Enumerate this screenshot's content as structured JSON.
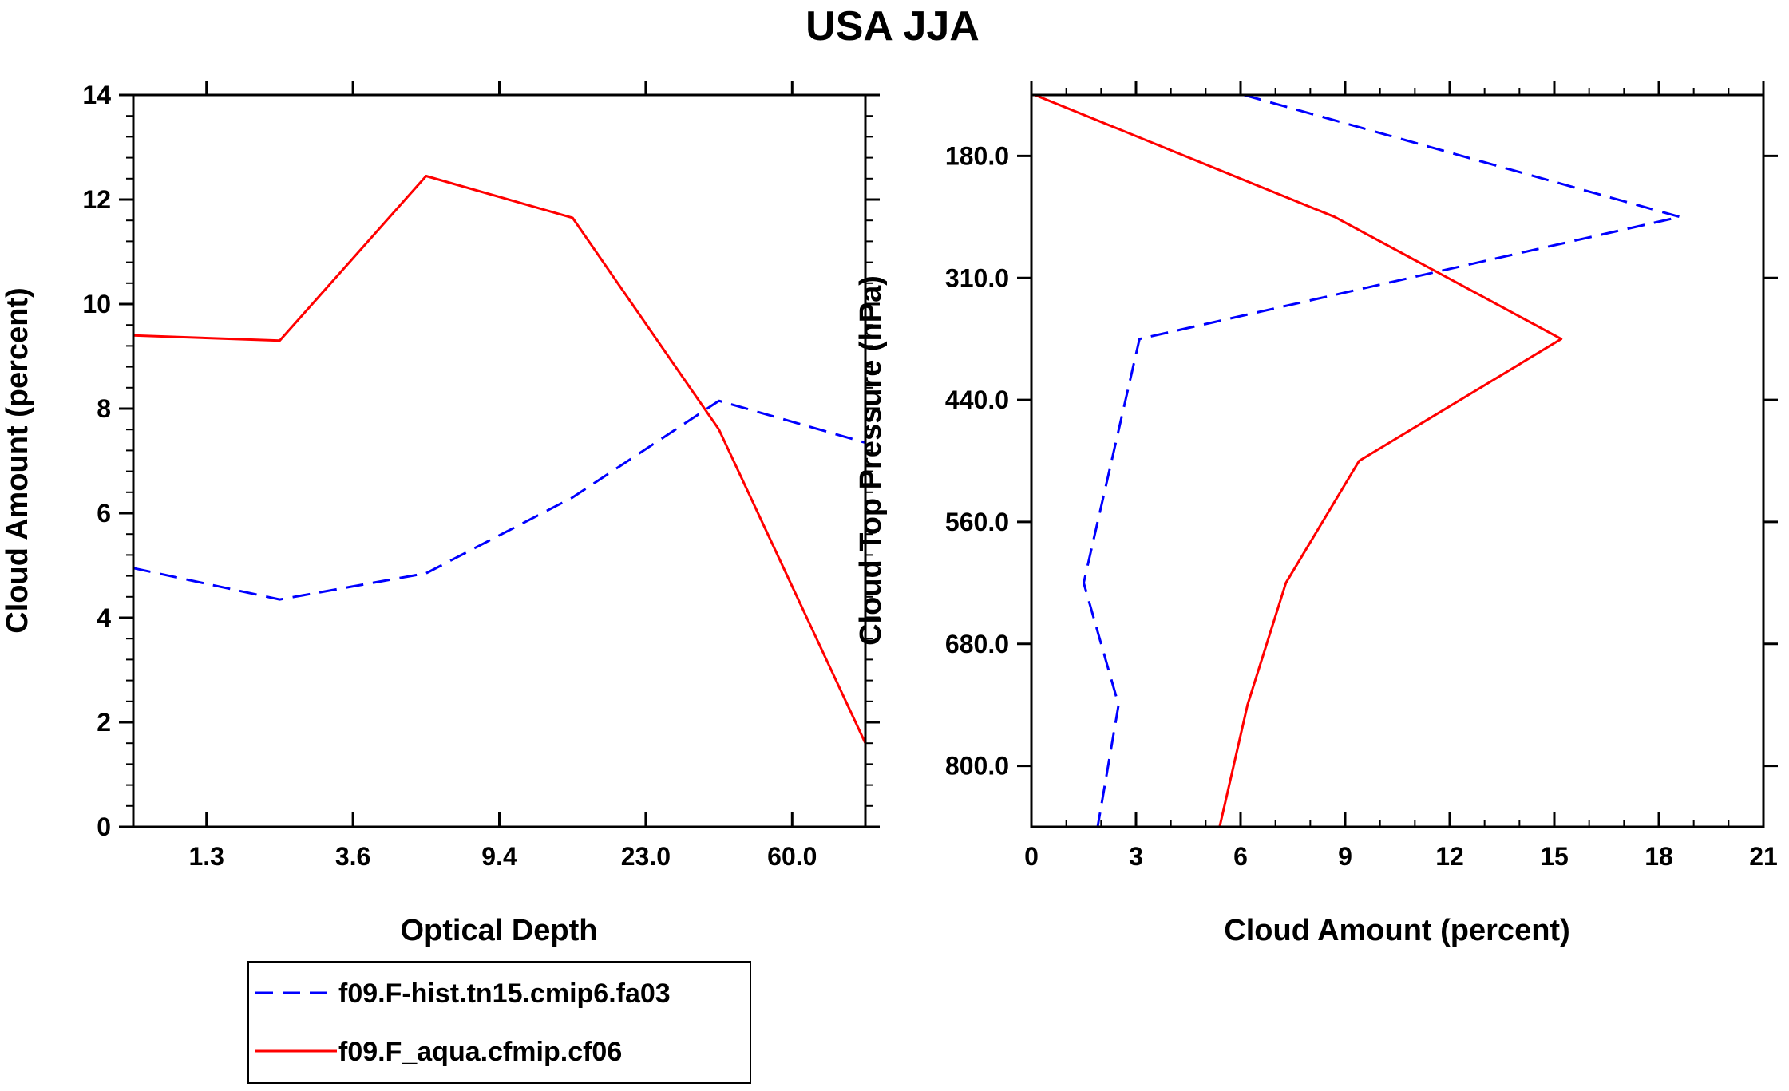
{
  "title": "USA JJA",
  "colors": {
    "series1": "#0000ff",
    "series2": "#ff0000",
    "axis": "#000000"
  },
  "chart_data": [
    {
      "type": "line",
      "name": "left-panel",
      "xlabel": "Optical Depth",
      "ylabel": "Cloud Amount (percent)",
      "xlim": [
        0,
        5
      ],
      "ylim": [
        0,
        14
      ],
      "xticks": [
        {
          "value": 0.5,
          "label": "1.3"
        },
        {
          "value": 1.5,
          "label": "3.6"
        },
        {
          "value": 2.5,
          "label": "9.4"
        },
        {
          "value": 3.5,
          "label": "23.0"
        },
        {
          "value": 4.5,
          "label": "60.0"
        }
      ],
      "yticks": [
        {
          "value": 0,
          "label": "0"
        },
        {
          "value": 2,
          "label": "2"
        },
        {
          "value": 4,
          "label": "4"
        },
        {
          "value": 6,
          "label": "6"
        },
        {
          "value": 8,
          "label": "8"
        },
        {
          "value": 10,
          "label": "10"
        },
        {
          "value": 12,
          "label": "12"
        },
        {
          "value": 14,
          "label": "14"
        }
      ],
      "series": [
        {
          "name": "f09.F-hist.tn15.cmip6.fa03",
          "color": "#0000ff",
          "dash": true,
          "points": [
            [
              0,
              4.95
            ],
            [
              1,
              4.35
            ],
            [
              2,
              4.85
            ],
            [
              3,
              6.3
            ],
            [
              4,
              8.15
            ],
            [
              5,
              7.35
            ]
          ]
        },
        {
          "name": "f09.F_aqua.cfmip.cf06",
          "color": "#ff0000",
          "dash": false,
          "points": [
            [
              0,
              9.4
            ],
            [
              1,
              9.3
            ],
            [
              2,
              12.45
            ],
            [
              3,
              11.65
            ],
            [
              4,
              7.6
            ],
            [
              5,
              1.6
            ]
          ]
        }
      ]
    },
    {
      "type": "line",
      "name": "right-panel",
      "xlabel": "Cloud Amount (percent)",
      "ylabel": "Cloud Top Pressure (hPa)",
      "xlim": [
        0,
        21
      ],
      "ylim": [
        0,
        6
      ],
      "xticks": [
        {
          "value": 0,
          "label": "0"
        },
        {
          "value": 3,
          "label": "3"
        },
        {
          "value": 6,
          "label": "6"
        },
        {
          "value": 9,
          "label": "9"
        },
        {
          "value": 12,
          "label": "12"
        },
        {
          "value": 15,
          "label": "15"
        },
        {
          "value": 18,
          "label": "18"
        },
        {
          "value": 21,
          "label": "21"
        }
      ],
      "yticks": [
        {
          "value": 0.5,
          "label": "180.0"
        },
        {
          "value": 1.5,
          "label": "310.0"
        },
        {
          "value": 2.5,
          "label": "440.0"
        },
        {
          "value": 3.5,
          "label": "560.0"
        },
        {
          "value": 4.5,
          "label": "680.0"
        },
        {
          "value": 5.5,
          "label": "800.0"
        }
      ],
      "series": [
        {
          "name": "f09.F-hist.tn15.cmip6.fa03",
          "color": "#0000ff",
          "dash": true,
          "points": [
            [
              6.1,
              0
            ],
            [
              18.6,
              1
            ],
            [
              3.1,
              2
            ],
            [
              1.5,
              4
            ],
            [
              2.5,
              5
            ],
            [
              1.9,
              6
            ]
          ]
        },
        {
          "name": "f09.F_aqua.cfmip.cf06",
          "color": "#ff0000",
          "dash": false,
          "points": [
            [
              0.1,
              0
            ],
            [
              8.7,
              1
            ],
            [
              15.2,
              2
            ],
            [
              9.4,
              3
            ],
            [
              7.3,
              4
            ],
            [
              6.2,
              5
            ],
            [
              5.4,
              6
            ]
          ]
        }
      ]
    }
  ],
  "legend": [
    {
      "label": "f09.F-hist.tn15.cmip6.fa03",
      "color": "#0000ff",
      "dash": true
    },
    {
      "label": "f09.F_aqua.cfmip.cf06",
      "color": "#ff0000",
      "dash": false
    }
  ]
}
